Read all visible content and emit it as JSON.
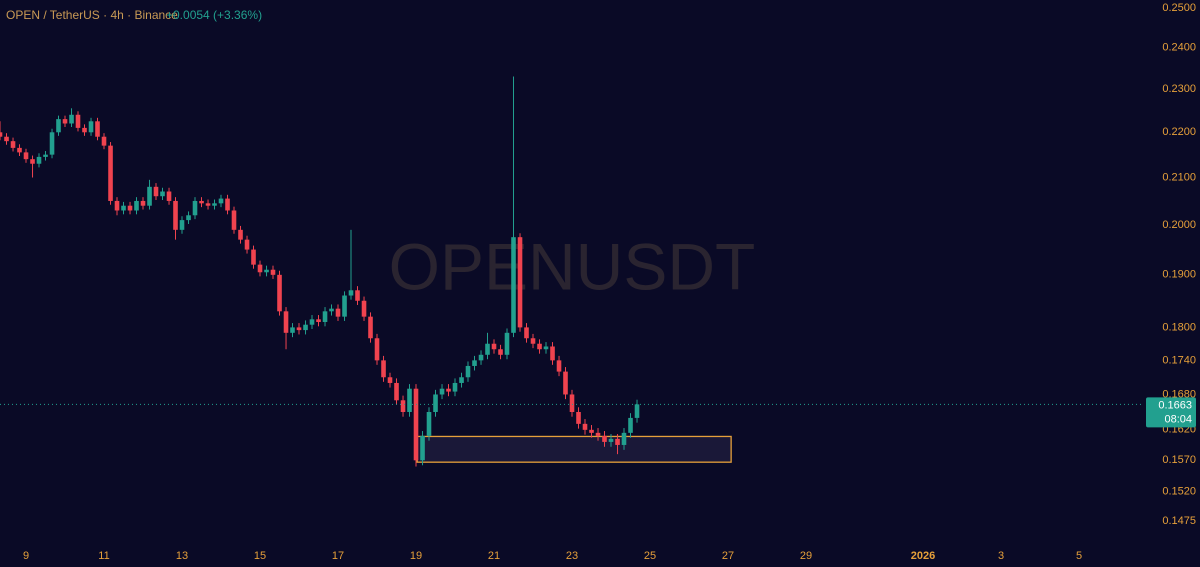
{
  "chart_data": {
    "type": "candlestick",
    "title": "OPEN / TetherUS · 4h · Binance",
    "subtitle": "+0.0054 (+3.36%)",
    "watermark": "OPENUSDT",
    "last_price": 0.1663,
    "countdown": "08:04",
    "up_color": "#22a08f",
    "down_color": "#f0434f",
    "accent_color": "#e6a03a",
    "log_scale": true,
    "grid": false,
    "xlim": [
      8.333,
      37.564
    ],
    "xticks": [
      9,
      11,
      13,
      15,
      17,
      19,
      21,
      23,
      25,
      27,
      29,
      {
        "value": 32,
        "label": "2026"
      },
      {
        "value": 34,
        "label": "3"
      },
      {
        "value": 36,
        "label": "5"
      }
    ],
    "ylim": [
      0.1475,
      0.25
    ],
    "yticks": [
      {
        "value": 0.25,
        "label": "0.2500"
      },
      {
        "value": 0.24,
        "label": "0.2400"
      },
      {
        "value": 0.23,
        "label": "0.2300"
      },
      {
        "value": 0.22,
        "label": "0.2200"
      },
      {
        "value": 0.21,
        "label": "0.2100"
      },
      {
        "value": 0.2,
        "label": "0.2000"
      },
      {
        "value": 0.19,
        "label": "0.1900"
      },
      {
        "value": 0.18,
        "label": "0.1800"
      },
      {
        "value": 0.174,
        "label": "0.1740"
      },
      {
        "value": 0.168,
        "label": "0.1680"
      },
      {
        "value": 0.162,
        "label": "0.1620"
      },
      {
        "value": 0.157,
        "label": "0.1570"
      },
      {
        "value": 0.152,
        "label": "0.1520"
      },
      0.1475
    ],
    "zone": {
      "x": [
        19.03,
        27.08
      ],
      "y": [
        0.1567,
        0.1609
      ]
    },
    "x": [
      8.333,
      8.5,
      8.667,
      8.833,
      9,
      9.167,
      9.333,
      9.5,
      9.667,
      9.833,
      10,
      10.167,
      10.333,
      10.5,
      10.667,
      10.833,
      11,
      11.167,
      11.333,
      11.5,
      11.667,
      11.833,
      12,
      12.167,
      12.333,
      12.5,
      12.667,
      12.833,
      13,
      13.167,
      13.333,
      13.5,
      13.667,
      13.833,
      14,
      14.167,
      14.333,
      14.5,
      14.667,
      14.833,
      15,
      15.167,
      15.333,
      15.5,
      15.667,
      15.833,
      16,
      16.167,
      16.333,
      16.5,
      16.667,
      16.833,
      17,
      17.167,
      17.333,
      17.5,
      17.667,
      17.833,
      18,
      18.167,
      18.333,
      18.5,
      18.667,
      18.833,
      19,
      19.167,
      19.333,
      19.5,
      19.667,
      19.833,
      20,
      20.167,
      20.333,
      20.5,
      20.667,
      20.833,
      21,
      21.167,
      21.333,
      21.5,
      21.667,
      21.833,
      22,
      22.167,
      22.333,
      22.5,
      22.667,
      22.833,
      23,
      23.167,
      23.333,
      23.5,
      23.667,
      23.833,
      24,
      24.167,
      24.333,
      24.5,
      24.667
    ],
    "open": [
      0.22,
      0.219,
      0.218,
      0.2165,
      0.2155,
      0.214,
      0.213,
      0.2145,
      0.215,
      0.22,
      0.223,
      0.222,
      0.224,
      0.221,
      0.22,
      0.2225,
      0.219,
      0.217,
      0.205,
      0.203,
      0.204,
      0.203,
      0.205,
      0.204,
      0.208,
      0.206,
      0.207,
      0.205,
      0.199,
      0.201,
      0.202,
      0.205,
      0.2045,
      0.204,
      0.2045,
      0.2055,
      0.203,
      0.199,
      0.197,
      0.195,
      0.192,
      0.1905,
      0.191,
      0.19,
      0.183,
      0.179,
      0.18,
      0.1795,
      0.1805,
      0.1815,
      0.181,
      0.183,
      0.1835,
      0.182,
      0.186,
      0.187,
      0.185,
      0.182,
      0.178,
      0.174,
      0.171,
      0.17,
      0.167,
      0.165,
      0.169,
      0.157,
      0.161,
      0.165,
      0.168,
      0.169,
      0.1685,
      0.17,
      0.171,
      0.173,
      0.174,
      0.175,
      0.177,
      0.176,
      0.175,
      0.179,
      0.1975,
      0.18,
      0.178,
      0.177,
      0.176,
      0.1765,
      0.174,
      0.172,
      0.168,
      0.165,
      0.163,
      0.162,
      0.1615,
      0.161,
      0.16,
      0.1605,
      0.1595,
      0.1615,
      0.164
    ],
    "high": [
      0.2225,
      0.2198,
      0.2188,
      0.2173,
      0.2163,
      0.2148,
      0.2153,
      0.2158,
      0.2208,
      0.2238,
      0.2238,
      0.2255,
      0.2248,
      0.2218,
      0.2233,
      0.2233,
      0.2198,
      0.2178,
      0.2058,
      0.2048,
      0.2048,
      0.2058,
      0.2058,
      0.2095,
      0.2088,
      0.2078,
      0.2078,
      0.2058,
      0.2018,
      0.2028,
      0.2058,
      0.2058,
      0.2053,
      0.2053,
      0.2063,
      0.2063,
      0.2038,
      0.1998,
      0.1978,
      0.1958,
      0.1928,
      0.1918,
      0.1918,
      0.1908,
      0.1838,
      0.1808,
      0.1808,
      0.1813,
      0.1823,
      0.1823,
      0.1838,
      0.1843,
      0.1843,
      0.1868,
      0.199,
      0.1878,
      0.1858,
      0.1828,
      0.1788,
      0.1748,
      0.1718,
      0.1708,
      0.1678,
      0.1698,
      0.1698,
      0.1618,
      0.1658,
      0.1688,
      0.1698,
      0.1698,
      0.1708,
      0.1718,
      0.1738,
      0.1748,
      0.1758,
      0.179,
      0.1778,
      0.1768,
      0.1798,
      0.233,
      0.1983,
      0.1808,
      0.1788,
      0.1778,
      0.1773,
      0.1773,
      0.1748,
      0.1728,
      0.1688,
      0.1658,
      0.1638,
      0.1628,
      0.1623,
      0.1618,
      0.1613,
      0.1613,
      0.1623,
      0.1648,
      0.1671
    ],
    "low": [
      0.2182,
      0.2172,
      0.2157,
      0.2147,
      0.2132,
      0.21,
      0.2122,
      0.2137,
      0.2142,
      0.2192,
      0.2212,
      0.2212,
      0.2202,
      0.2192,
      0.2192,
      0.2182,
      0.2162,
      0.2042,
      0.202,
      0.2022,
      0.2022,
      0.2022,
      0.2032,
      0.2032,
      0.2052,
      0.2052,
      0.2042,
      0.197,
      0.1982,
      0.2002,
      0.2012,
      0.2037,
      0.2032,
      0.2032,
      0.2037,
      0.2022,
      0.1982,
      0.1962,
      0.1942,
      0.1912,
      0.1897,
      0.1897,
      0.1892,
      0.1822,
      0.176,
      0.1782,
      0.1787,
      0.1787,
      0.1797,
      0.1802,
      0.1802,
      0.1822,
      0.1812,
      0.1812,
      0.1852,
      0.1842,
      0.1812,
      0.1772,
      0.1732,
      0.1702,
      0.1692,
      0.1662,
      0.1642,
      0.1642,
      0.156,
      0.1562,
      0.1602,
      0.1642,
      0.1672,
      0.1677,
      0.1677,
      0.1692,
      0.1702,
      0.1722,
      0.1732,
      0.1742,
      0.1752,
      0.1742,
      0.1742,
      0.1782,
      0.1792,
      0.1772,
      0.1762,
      0.1752,
      0.1752,
      0.1732,
      0.1712,
      0.1672,
      0.1642,
      0.1622,
      0.1612,
      0.1607,
      0.1602,
      0.1592,
      0.1592,
      0.158,
      0.1587,
      0.1607,
      0.1632
    ],
    "close": [
      0.219,
      0.218,
      0.2165,
      0.2155,
      0.214,
      0.213,
      0.2145,
      0.215,
      0.22,
      0.223,
      0.222,
      0.224,
      0.221,
      0.22,
      0.2225,
      0.219,
      0.217,
      0.205,
      0.203,
      0.204,
      0.203,
      0.205,
      0.204,
      0.208,
      0.206,
      0.207,
      0.205,
      0.199,
      0.201,
      0.202,
      0.205,
      0.2045,
      0.204,
      0.2045,
      0.2055,
      0.203,
      0.199,
      0.197,
      0.195,
      0.192,
      0.1905,
      0.191,
      0.19,
      0.183,
      0.179,
      0.18,
      0.1795,
      0.1805,
      0.1815,
      0.181,
      0.183,
      0.1835,
      0.182,
      0.186,
      0.187,
      0.185,
      0.182,
      0.178,
      0.174,
      0.171,
      0.17,
      0.167,
      0.165,
      0.169,
      0.157,
      0.161,
      0.165,
      0.168,
      0.169,
      0.1685,
      0.17,
      0.171,
      0.173,
      0.174,
      0.175,
      0.177,
      0.176,
      0.175,
      0.179,
      0.1975,
      0.18,
      0.178,
      0.177,
      0.176,
      0.1765,
      0.174,
      0.172,
      0.168,
      0.165,
      0.163,
      0.162,
      0.1615,
      0.161,
      0.16,
      0.1605,
      0.1595,
      0.1615,
      0.164,
      0.1663
    ]
  }
}
